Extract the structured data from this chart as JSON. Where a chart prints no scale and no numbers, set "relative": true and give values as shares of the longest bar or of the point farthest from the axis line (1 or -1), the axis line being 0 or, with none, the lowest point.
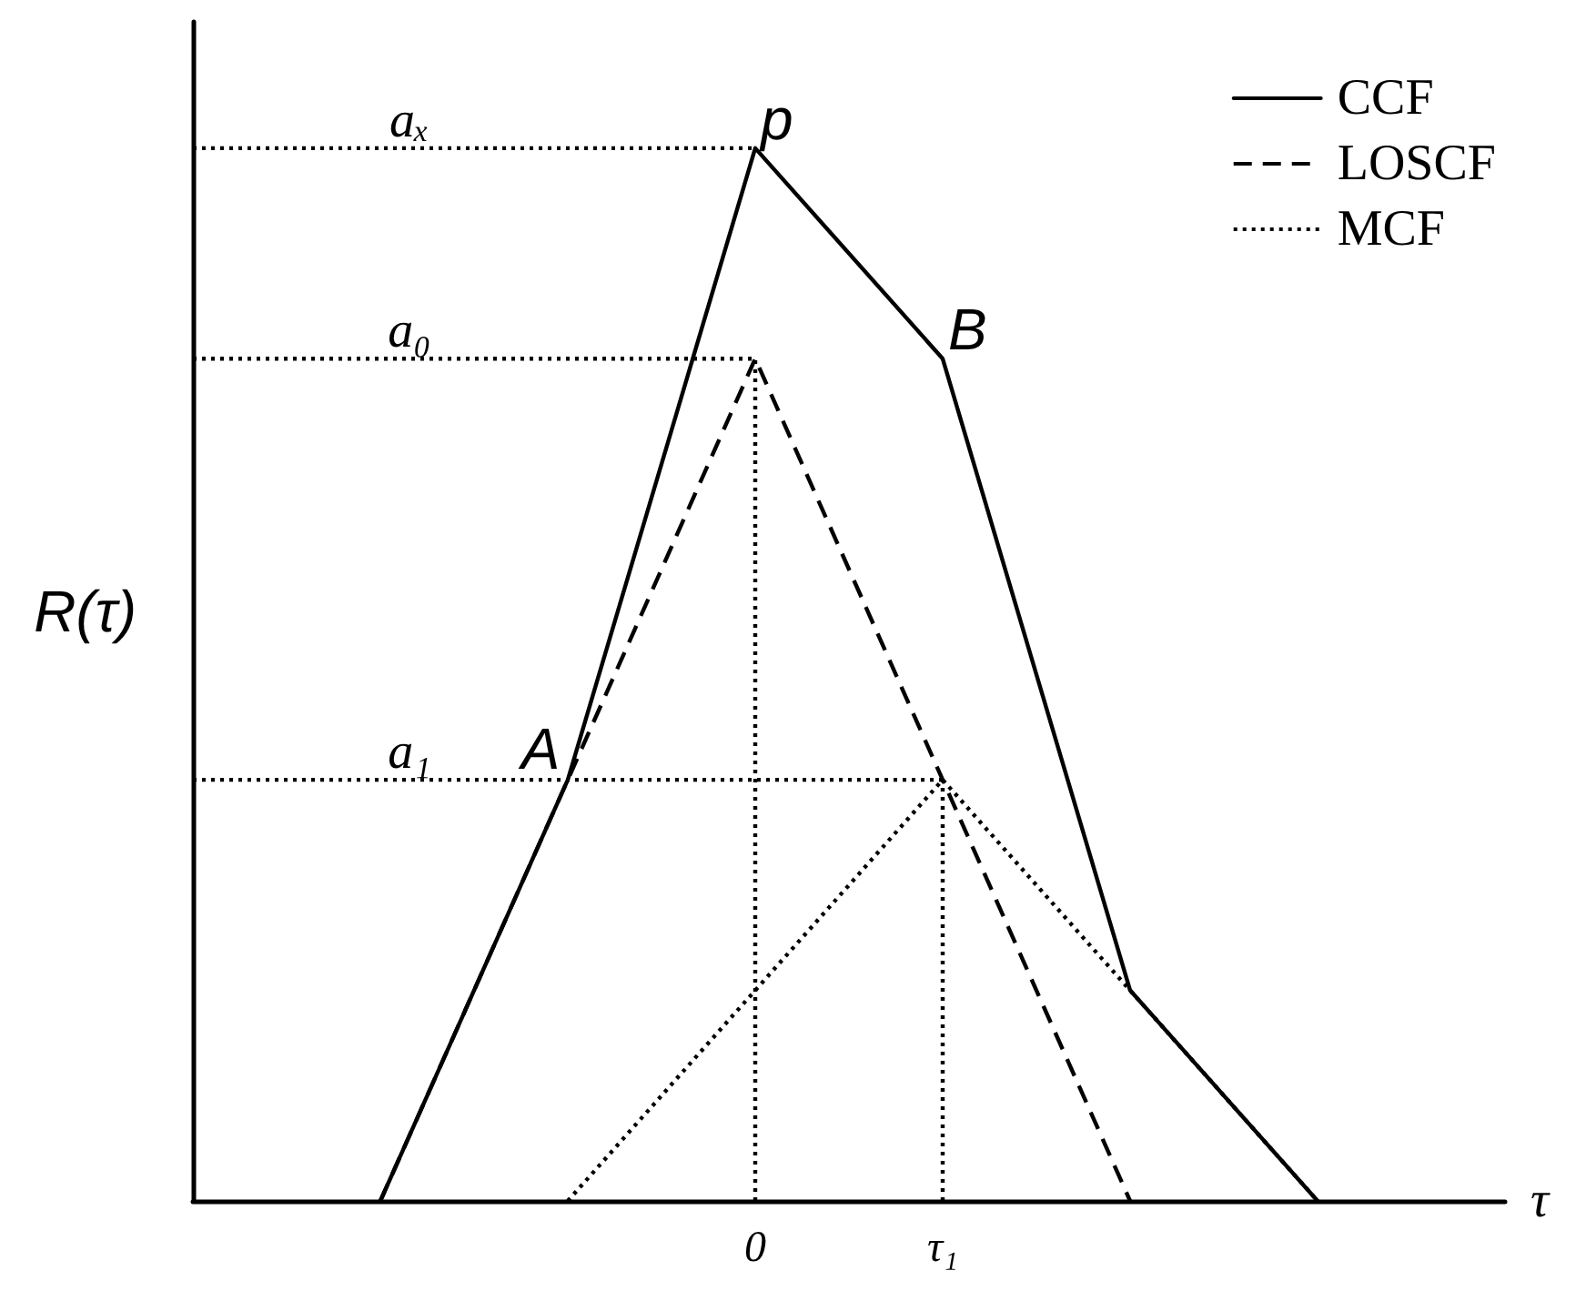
{
  "chart_data": {
    "type": "line",
    "relative": true,
    "xlabel": "τ",
    "ylabel": "R(τ)",
    "categories": [
      null,
      null,
      null,
      "0",
      "τ₁",
      null,
      null,
      null
    ],
    "legend": "top right",
    "series": [
      {
        "name": "CCF",
        "color": "#000000",
        "line_style": "solid",
        "values": [
          null,
          0,
          0.4,
          1,
          0.8,
          0.2,
          0,
          null
        ]
      },
      {
        "name": "LOSCF",
        "color": "#000000",
        "line_style": "dashed",
        "values": [
          null,
          0,
          0.4,
          0.8,
          0.4,
          0,
          null,
          null
        ]
      },
      {
        "name": "MCF",
        "color": "#000000",
        "line_style": "dotted",
        "values": [
          null,
          null,
          0,
          0.2,
          0.4,
          0.2,
          0,
          null
        ]
      },
      {
        "color": "#000000",
        "line_style": "dotted",
        "values": [
          1,
          1,
          1,
          1,
          null,
          null,
          null,
          null
        ]
      },
      {
        "color": "#000000",
        "line_style": "dotted",
        "values": [
          0.8,
          0.8,
          0.8,
          0.8,
          null,
          null,
          null,
          null
        ]
      },
      {
        "color": "#000000",
        "line_style": "dotted",
        "values": [
          0.4,
          0.4,
          0.4,
          0.4,
          0.4,
          null,
          null,
          null
        ]
      },
      {
        "color": "#000000",
        "line_style": "dotted",
        "x": [
          "0",
          "0"
        ],
        "values": [
          0,
          0.8
        ]
      },
      {
        "color": "#000000",
        "line_style": "dotted",
        "x": [
          "τ₁",
          "τ₁"
        ],
        "values": [
          0,
          0.4
        ]
      }
    ],
    "annotations": [
      {
        "text": "aₓ",
        "y": 1
      },
      {
        "text": "a₀",
        "y": 0.8
      },
      {
        "text": "a₁",
        "y": 0.4
      },
      {
        "text": "p",
        "x": "0",
        "y": 1
      },
      {
        "text": "B",
        "x": "τ₁",
        "y": 0.8
      },
      {
        "text": "A",
        "y": 0.4
      }
    ]
  }
}
